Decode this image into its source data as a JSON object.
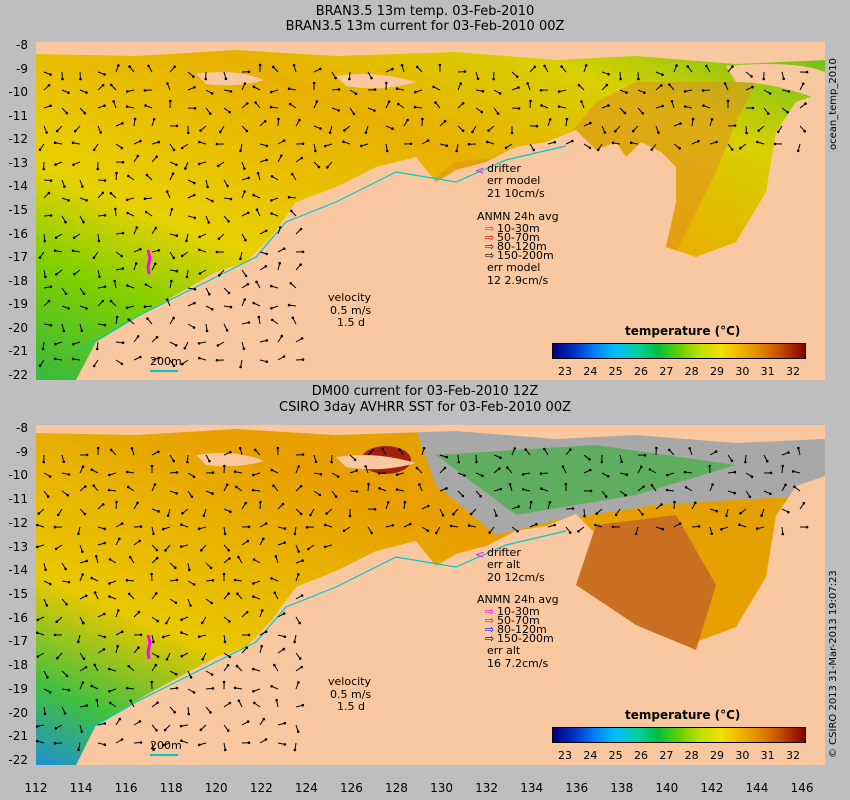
{
  "top_panel": {
    "title_line1": "BRAN3.5 13m temp. 03-Feb-2010",
    "title_line2": "BRAN3.5 13m current for 03-Feb-2010 00Z",
    "side_label": "ocean_temp_2010",
    "legend": {
      "drifter": "drifter",
      "err_line1": "err model",
      "err_line2": "21 10cm/s",
      "anmn_title": "ANMN 24h avg",
      "depths": [
        "10-30m",
        "50-70m",
        "80-120m",
        "150-200m"
      ],
      "err2_line1": "err model",
      "err2_line2": "12 2.9cm/s"
    },
    "velocity": {
      "label": "velocity",
      "speed": "0.5 m/s",
      "duration": "1.5 d"
    },
    "isobath": "200m",
    "colorbar_title": "temperature (°C)"
  },
  "bottom_panel": {
    "title_line1": "DM00 current for 03-Feb-2010 12Z",
    "title_line2": "CSIRO 3day AVHRR SST for 03-Feb-2010 00Z",
    "side_label": "© CSIRO 2013   31-Mar-2013 19:07:23",
    "legend": {
      "drifter": "drifter",
      "err_line1": "err alt",
      "err_line2": "20 12cm/s",
      "anmn_title": "ANMN 24h avg",
      "depths": [
        "10-30m",
        "50-70m",
        "80-120m",
        "150-200m"
      ],
      "err2_line1": "err alt",
      "err2_line2": "16 7.2cm/s"
    },
    "velocity": {
      "label": "velocity",
      "speed": "0.5 m/s",
      "duration": "1.5 d"
    },
    "isobath": "200m",
    "colorbar_title": "temperature (°C)"
  },
  "axes": {
    "lat_ticks": [
      "-8",
      "-9",
      "-10",
      "-11",
      "-12",
      "-13",
      "-14",
      "-15",
      "-16",
      "-17",
      "-18",
      "-19",
      "-20",
      "-21",
      "-22"
    ],
    "lon_ticks": [
      "112",
      "114",
      "116",
      "118",
      "120",
      "122",
      "124",
      "126",
      "128",
      "130",
      "132",
      "134",
      "136",
      "138",
      "140",
      "142",
      "144",
      "146"
    ],
    "colorbar_ticks": [
      "23",
      "24",
      "25",
      "26",
      "27",
      "28",
      "29",
      "30",
      "31",
      "32"
    ]
  },
  "colors": {
    "background": "#bebebe",
    "land": "#f9c8a0",
    "drifter": "#ff00ff",
    "depth_10_30": "#ff00ff",
    "depth_50_70": "#ff0000",
    "depth_80_120": "#0000ff",
    "depth_150_200": "#000000",
    "isobath": "#00c8c8",
    "colorbar": [
      "#000080",
      "#0030c0",
      "#0080ff",
      "#00c0ff",
      "#00d0a0",
      "#00c040",
      "#60d000",
      "#c0e000",
      "#f0e000",
      "#f0b000",
      "#e08000",
      "#c04000",
      "#800000"
    ]
  }
}
